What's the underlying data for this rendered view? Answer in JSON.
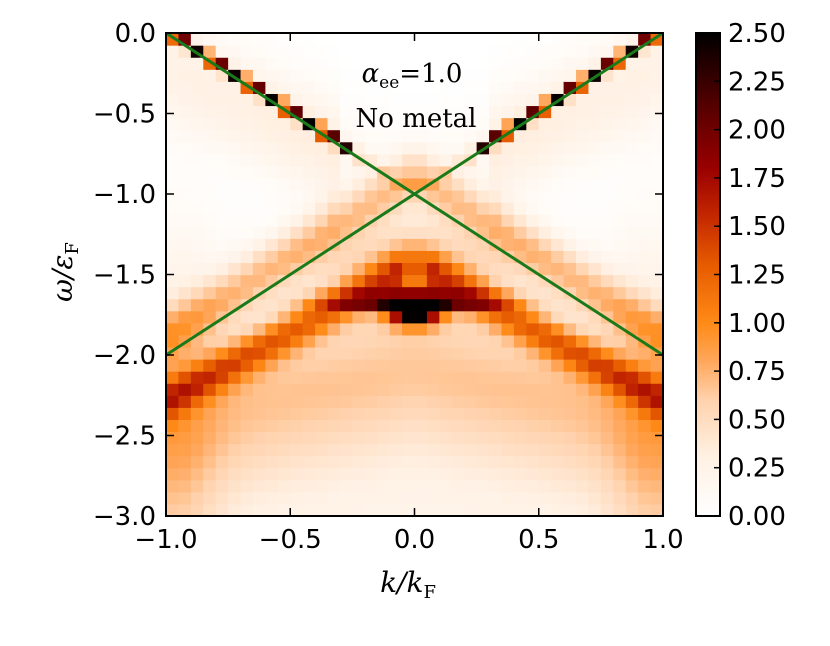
{
  "chart_data": {
    "type": "heatmap",
    "title": "",
    "xlabel": "k/k",
    "xlabel_sub": "F",
    "ylabel": "ω/ε",
    "ylabel_sub": "F",
    "xlim": [
      -1.0,
      1.0
    ],
    "ylim": [
      -3.0,
      0.0
    ],
    "x_ticks": [
      -1.0,
      -0.5,
      0.0,
      0.5,
      1.0
    ],
    "x_tick_labels": [
      "−1.0",
      "−0.5",
      "0.0",
      "0.5",
      "1.0"
    ],
    "y_ticks": [
      0.0,
      -0.5,
      -1.0,
      -1.5,
      -2.0,
      -2.5,
      -3.0
    ],
    "y_tick_labels": [
      "0.0",
      "−0.5",
      "−1.0",
      "−1.5",
      "−2.0",
      "−2.5",
      "−3.0"
    ],
    "colorbar": {
      "range": [
        0.0,
        2.5
      ],
      "ticks": [
        0.0,
        0.25,
        0.5,
        0.75,
        1.0,
        1.25,
        1.5,
        1.75,
        2.0,
        2.25,
        2.5
      ],
      "tick_labels": [
        "0.00",
        "0.25",
        "0.50",
        "0.75",
        "1.00",
        "1.25",
        "1.50",
        "1.75",
        "2.00",
        "2.25",
        "2.50"
      ],
      "colormap": "gist_heat_r"
    },
    "annotations": {
      "alpha_symbol": "α",
      "alpha_sub": "ee",
      "alpha_value": "=1.0",
      "condition": "No metal"
    },
    "lines": [
      {
        "name": "",
        "color": "#1a7a1a",
        "x": [
          -1.0,
          1.0
        ],
        "y": [
          0.0,
          -2.0
        ]
      },
      {
        "name": "",
        "color": "#1a7a1a",
        "x": [
          -1.0,
          1.0
        ],
        "y": [
          -2.0,
          0.0
        ]
      }
    ],
    "features": {
      "quasiparticle_slope": 1.0,
      "plasmaron_slope": 0.85,
      "plasmaron_offset": -1.25,
      "dark_spot": {
        "x": 0.0,
        "y": -1.72,
        "value": 2.5
      },
      "flat_band_y": -1.66
    }
  }
}
